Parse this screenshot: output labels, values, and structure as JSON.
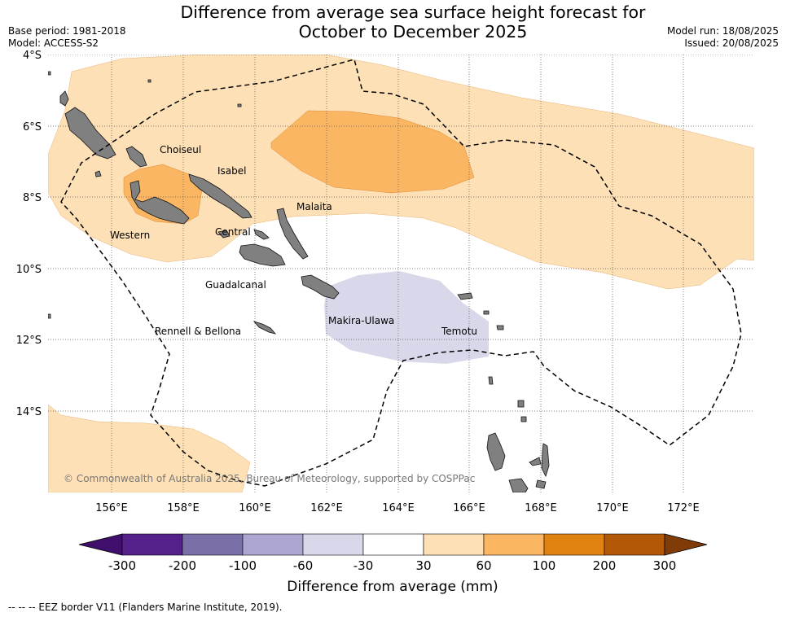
{
  "title_line1": "Difference from average sea surface height forecast for",
  "title_line2": "October to December 2025",
  "base_period": "Base period: 1981-2018",
  "model": "Model: ACCESS-S2",
  "model_run": "Model run: 18/08/2025",
  "issued": "Issued: 20/08/2025",
  "lat_labels": [
    "4°S",
    "6°S",
    "8°S",
    "10°S",
    "12°S",
    "14°S"
  ],
  "lon_labels": [
    "156°E",
    "158°E",
    "160°E",
    "162°E",
    "164°E",
    "166°E",
    "168°E",
    "170°E",
    "172°E"
  ],
  "provinces": [
    "Choiseul",
    "Isabel",
    "Malaita",
    "Western",
    "Central",
    "Guadalcanal",
    "Makira-Ulawa",
    "Temotu",
    "Rennell & Bellona"
  ],
  "copyright": "© Commonwealth of Australia 2025, Bureau of Meteorology, supported by COSPPac",
  "legend": {
    "title": "Difference from average (mm)",
    "ticks": [
      "-300",
      "-200",
      "-100",
      "-60",
      "-30",
      "30",
      "60",
      "100",
      "200",
      "300"
    ],
    "colors": [
      "#3f0f6b",
      "#54208a",
      "#7b6fa8",
      "#aca6d0",
      "#d8d8ea",
      "#ffffff",
      "#fde0b6",
      "#fab662",
      "#e08210",
      "#b35806",
      "#7f3b08"
    ]
  },
  "footer": "--  --  -- EEZ border V11 (Flanders Marine Institute, 2019)."
}
